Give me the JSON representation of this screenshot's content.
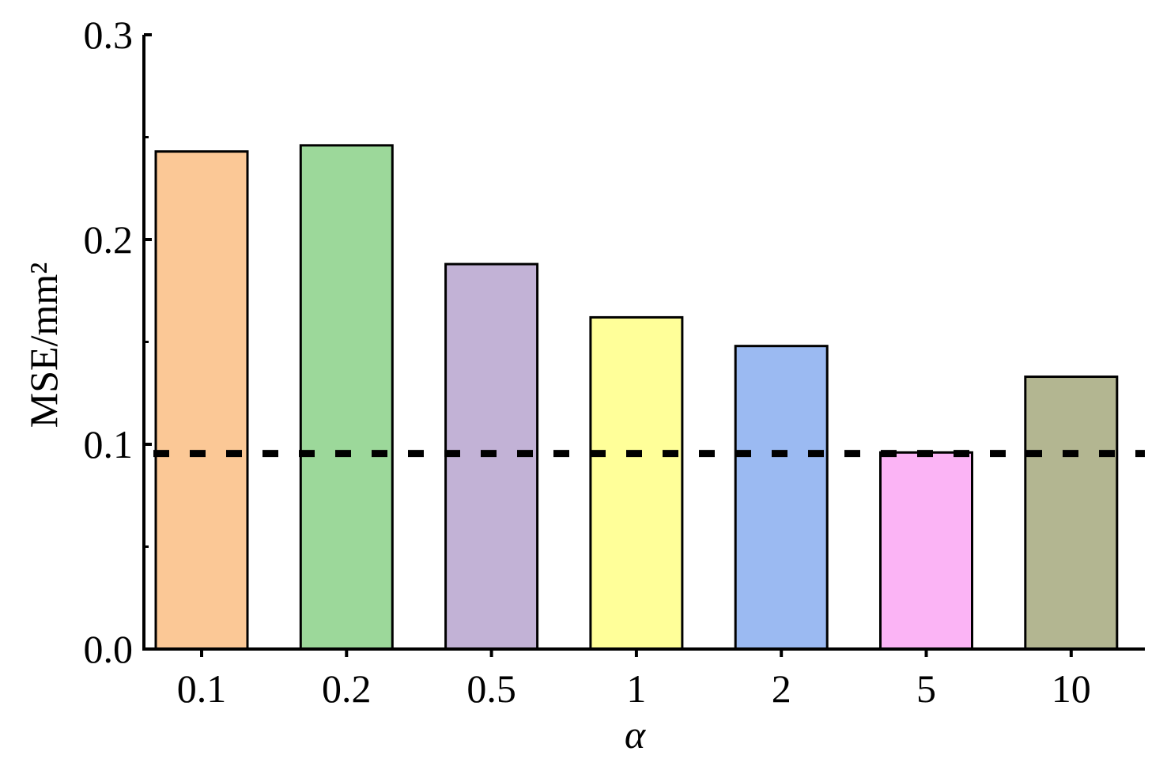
{
  "chart_data": {
    "type": "bar",
    "categories": [
      "0.1",
      "0.2",
      "0.5",
      "1",
      "2",
      "5",
      "10"
    ],
    "values": [
      0.243,
      0.246,
      0.188,
      0.162,
      0.148,
      0.096,
      0.133
    ],
    "bar_colors": [
      "#FBC896",
      "#9CD89A",
      "#C2B2D6",
      "#FFFF99",
      "#9BBAF2",
      "#FBB4F5",
      "#B3B691"
    ],
    "title": "",
    "xlabel": "α",
    "ylabel": "MSE/mm²",
    "ylim": [
      0,
      0.3
    ],
    "yticks": [
      0.0,
      0.1,
      0.2,
      0.3
    ],
    "ytick_labels": [
      "0.0",
      "0.1",
      "0.2",
      "0.3"
    ],
    "minor_yticks": [
      0.05,
      0.15,
      0.25
    ],
    "reference_line": {
      "y": 0.0955,
      "style": "dotted",
      "color": "#000000"
    },
    "grid": false,
    "legend": "none"
  }
}
